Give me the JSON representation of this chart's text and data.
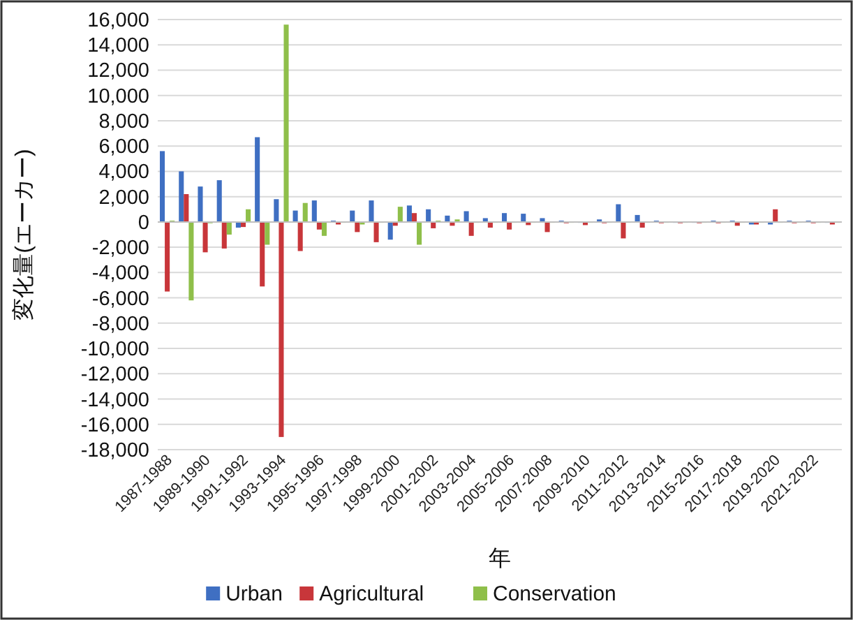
{
  "chart_data": {
    "type": "bar",
    "xlabel": "年",
    "ylabel": "変化量(エーカー)",
    "categories": [
      "1987-1988",
      null,
      "1989-1990",
      null,
      "1991-1992",
      null,
      "1993-1994",
      null,
      "1995-1996",
      null,
      "1997-1998",
      null,
      "1999-2000",
      null,
      "2001-2002",
      null,
      "2003-2004",
      null,
      "2005-2006",
      null,
      "2007-2008",
      null,
      "2009-2010",
      null,
      "2011-2012",
      null,
      "2013-2014",
      null,
      "2015-2016",
      null,
      "2017-2018",
      null,
      "2019-2020",
      null,
      "2021-2022",
      null
    ],
    "series": [
      {
        "name": "Urban",
        "color": "#3f6fc2",
        "values": [
          5600,
          4000,
          2800,
          3300,
          -450,
          6700,
          1800,
          900,
          1700,
          100,
          900,
          1700,
          -1400,
          1300,
          1000,
          500,
          850,
          300,
          700,
          650,
          300,
          100,
          0,
          200,
          1400,
          550,
          100,
          0,
          0,
          100,
          100,
          -200,
          -200,
          100,
          100,
          0
        ]
      },
      {
        "name": "Agricultural",
        "color": "#c8363a",
        "values": [
          -5500,
          2200,
          -2400,
          -2100,
          -400,
          -5100,
          -17000,
          -2300,
          -600,
          -200,
          -800,
          -1600,
          -300,
          700,
          -500,
          -300,
          -1100,
          -450,
          -600,
          -250,
          -800,
          -100,
          -250,
          -100,
          -1300,
          -450,
          -100,
          -100,
          -100,
          -100,
          -300,
          -200,
          1000,
          -100,
          -100,
          -200
        ]
      },
      {
        "name": "Conservation",
        "color": "#8fbf4a",
        "values": [
          100,
          -6200,
          -100,
          -1000,
          1000,
          -1800,
          15600,
          1500,
          -1100,
          0,
          -200,
          0,
          1200,
          -1800,
          100,
          200,
          0,
          0,
          0,
          0,
          0,
          0,
          0,
          0,
          0,
          0,
          0,
          0,
          0,
          0,
          0,
          0,
          0,
          0,
          0,
          0
        ]
      }
    ],
    "ylim": [
      -18000,
      16000
    ],
    "yticks": [
      {
        "value": 16000,
        "label": "16,000"
      },
      {
        "value": 14000,
        "label": "14,000"
      },
      {
        "value": 12000,
        "label": "12,000"
      },
      {
        "value": 10000,
        "label": "10,000"
      },
      {
        "value": 8000,
        "label": "8,000"
      },
      {
        "value": 6000,
        "label": "6,000"
      },
      {
        "value": 4000,
        "label": "4,000"
      },
      {
        "value": 2000,
        "label": "2,000"
      },
      {
        "value": 0,
        "label": "0"
      },
      {
        "value": -2000,
        "label": "-2,000"
      },
      {
        "value": -4000,
        "label": "-4,000"
      },
      {
        "value": -6000,
        "label": "-6,000"
      },
      {
        "value": -8000,
        "label": "-8,000"
      },
      {
        "value": -10000,
        "label": "-10,000"
      },
      {
        "value": -12000,
        "label": "-12,000"
      },
      {
        "value": -14000,
        "label": "-14,000"
      },
      {
        "value": -16000,
        "label": "-16,000"
      },
      {
        "value": -18000,
        "label": "-18,000"
      }
    ],
    "grid": "y",
    "legend": "bottom"
  }
}
